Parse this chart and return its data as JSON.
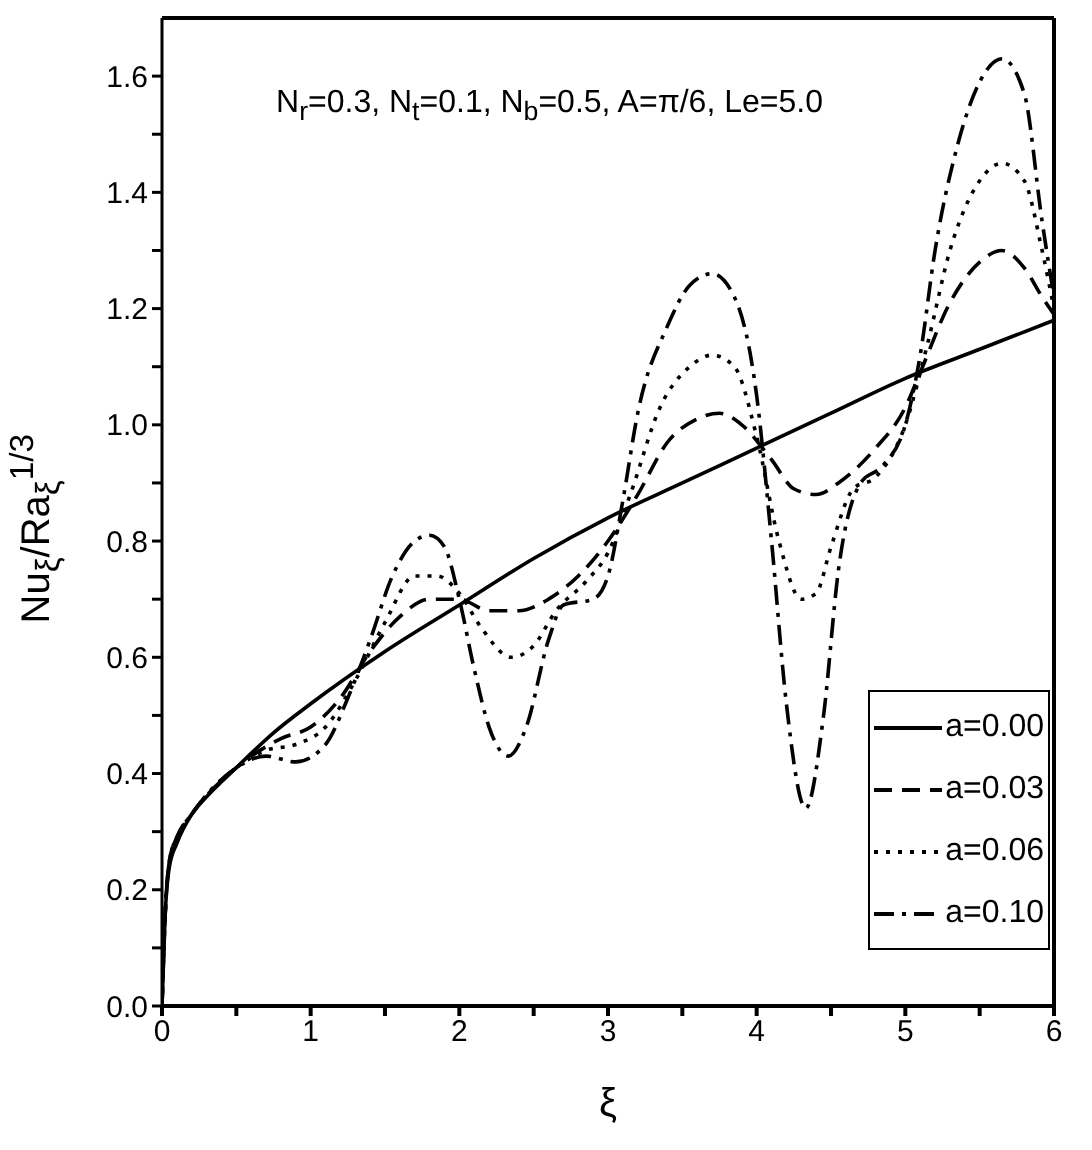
{
  "chart_data": {
    "type": "line",
    "xlabel": "ξ",
    "ylabel": "Nu$_{ξ}$/Ra$_{ξ}$$^{1/3}$",
    "annotations": [
      "N$_{r}$=0.3, N$_{t}$=0.1, N$_{b}$=0.5, A=π/6, Le=5.0"
    ],
    "xlim": [
      0,
      6
    ],
    "ylim": [
      0,
      1.7
    ],
    "xticks": [
      0,
      {
        "value": 0.5,
        "label": null
      },
      1,
      {
        "value": 1.5,
        "label": null
      },
      2,
      {
        "value": 2.5,
        "label": null
      },
      3,
      {
        "value": 3.5,
        "label": null
      },
      4,
      {
        "value": 4.5,
        "label": null
      },
      5,
      {
        "value": 5.5,
        "label": null
      },
      6
    ],
    "yticks": [
      {
        "value": 0,
        "label": "0.0"
      },
      {
        "value": 0.1,
        "label": null
      },
      0.2,
      {
        "value": 0.3,
        "label": null
      },
      0.4,
      {
        "value": 0.5,
        "label": null
      },
      0.6,
      {
        "value": 0.7,
        "label": null
      },
      0.8,
      {
        "value": 0.9,
        "label": null
      },
      {
        "value": 1,
        "label": "1.0"
      },
      {
        "value": 1.1,
        "label": null
      },
      1.2,
      {
        "value": 1.3,
        "label": null
      },
      1.4,
      {
        "value": 1.5,
        "label": null
      },
      1.6
    ],
    "grid": false,
    "legend": "bottom right",
    "marker": "none",
    "series": [
      {
        "name": "a=0.00",
        "color": "#000000",
        "line_style": "solid",
        "x": [
          0,
          0.02,
          0.05,
          0.1,
          0.2,
          0.3,
          0.5,
          0.75,
          1,
          1.5,
          2,
          2.5,
          3,
          3.5,
          4,
          4.5,
          5,
          5.5,
          6
        ],
        "values": [
          0,
          0.15,
          0.24,
          0.28,
          0.33,
          0.36,
          0.41,
          0.47,
          0.52,
          0.61,
          0.69,
          0.77,
          0.84,
          0.9,
          0.96,
          1.02,
          1.08,
          1.13,
          1.18
        ]
      },
      {
        "name": "a=0.03",
        "color": "#000000",
        "line_style": "dashed",
        "x": [
          0,
          0.02,
          0.05,
          0.1,
          0.2,
          0.5,
          0.8,
          1,
          1.2,
          1.4,
          1.6,
          1.8,
          2,
          2.2,
          2.4,
          2.6,
          2.8,
          3,
          3.2,
          3.4,
          3.6,
          3.75,
          3.9,
          4.1,
          4.25,
          4.4,
          4.55,
          4.8,
          5,
          5.1,
          5.3,
          5.5,
          5.65,
          5.8,
          5.92,
          6
        ],
        "values": [
          0,
          0.15,
          0.25,
          0.29,
          0.33,
          0.41,
          0.46,
          0.48,
          0.53,
          0.61,
          0.67,
          0.7,
          0.7,
          0.68,
          0.68,
          0.7,
          0.74,
          0.8,
          0.88,
          0.97,
          1.01,
          1.02,
          1,
          0.94,
          0.89,
          0.88,
          0.9,
          0.96,
          1.03,
          1.09,
          1.21,
          1.28,
          1.3,
          1.27,
          1.22,
          1.19
        ]
      },
      {
        "name": "a=0.06",
        "color": "#000000",
        "line_style": "dotted",
        "x": [
          0,
          0.02,
          0.05,
          0.1,
          0.2,
          0.5,
          0.7,
          0.9,
          1.1,
          1.3,
          1.5,
          1.7,
          1.85,
          2,
          2.15,
          2.35,
          2.5,
          2.65,
          2.85,
          3,
          3.15,
          3.35,
          3.55,
          3.7,
          3.85,
          4,
          4.15,
          4.3,
          4.4,
          4.5,
          4.65,
          4.8,
          5,
          5.15,
          5.3,
          5.5,
          5.65,
          5.8,
          5.92,
          6
        ],
        "values": [
          0,
          0.15,
          0.25,
          0.29,
          0.33,
          0.41,
          0.44,
          0.45,
          0.48,
          0.56,
          0.66,
          0.74,
          0.74,
          0.71,
          0.65,
          0.6,
          0.62,
          0.68,
          0.73,
          0.78,
          0.88,
          1.03,
          1.1,
          1.12,
          1.1,
          0.98,
          0.8,
          0.7,
          0.71,
          0.79,
          0.89,
          0.91,
          1,
          1.14,
          1.3,
          1.42,
          1.45,
          1.42,
          1.3,
          1.2
        ]
      },
      {
        "name": "a=0.10",
        "color": "#000000",
        "line_style": "dashdot",
        "x": [
          0,
          0.02,
          0.05,
          0.1,
          0.2,
          0.5,
          0.7,
          0.9,
          1.1,
          1.25,
          1.4,
          1.55,
          1.7,
          1.8,
          1.9,
          2,
          2.1,
          2.2,
          2.33,
          2.45,
          2.6,
          2.7,
          2.9,
          3,
          3.1,
          3.2,
          3.4,
          3.55,
          3.7,
          3.85,
          4,
          4.1,
          4.2,
          4.33,
          4.45,
          4.55,
          4.7,
          4.85,
          5,
          5.1,
          5.2,
          5.35,
          5.5,
          5.65,
          5.8,
          5.92,
          6
        ],
        "values": [
          0,
          0.15,
          0.25,
          0.29,
          0.33,
          0.41,
          0.43,
          0.42,
          0.45,
          0.53,
          0.63,
          0.74,
          0.8,
          0.81,
          0.79,
          0.7,
          0.58,
          0.48,
          0.43,
          0.48,
          0.63,
          0.69,
          0.7,
          0.74,
          0.87,
          1.02,
          1.17,
          1.24,
          1.26,
          1.22,
          1.05,
          0.8,
          0.52,
          0.34,
          0.5,
          0.75,
          0.9,
          0.93,
          1,
          1.12,
          1.3,
          1.48,
          1.59,
          1.63,
          1.57,
          1.35,
          1.22
        ]
      }
    ]
  }
}
